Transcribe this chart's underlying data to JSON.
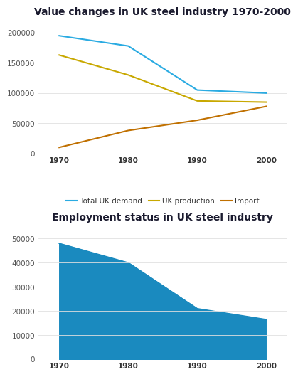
{
  "chart1": {
    "title": "Value changes in UK steel industry 1970-2000",
    "years": [
      1970,
      1980,
      1990,
      2000
    ],
    "total_uk_demand": [
      195000,
      178000,
      105000,
      100000
    ],
    "uk_production": [
      163000,
      130000,
      87000,
      85000
    ],
    "import": [
      10000,
      38000,
      55000,
      78000
    ],
    "ylim": [
      0,
      220000
    ],
    "yticks": [
      0,
      50000,
      100000,
      150000,
      200000
    ],
    "colors": {
      "total_uk_demand": "#2aabe2",
      "uk_production": "#c8a800",
      "import": "#c07000"
    },
    "line_labels": [
      "Total UK demand",
      "UK production",
      "Import"
    ],
    "bg_color": "#ffffff"
  },
  "chart2": {
    "title": "Employment status in UK steel industry",
    "years": [
      1970,
      1980,
      1990,
      2000
    ],
    "employment": [
      48000,
      40000,
      21000,
      16500
    ],
    "ylim": [
      0,
      55000
    ],
    "yticks": [
      0,
      10000,
      20000,
      30000,
      40000,
      50000
    ],
    "fill_color": "#1a8abf",
    "bg_color": "#ffffff"
  },
  "title_fontsize": 10,
  "tick_fontsize": 7.5,
  "legend_fontsize": 7.5
}
